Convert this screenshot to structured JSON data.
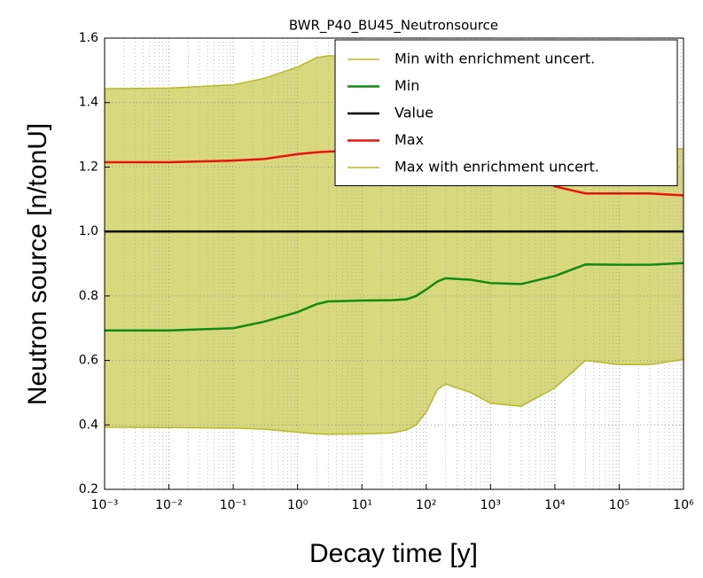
{
  "chart_data": {
    "type": "line",
    "title": "BWR_P40_BU45_Neutronsource",
    "xlabel": "Decay time [y]",
    "ylabel": "Neutron source [n/tonU]",
    "xscale": "log",
    "grid": true,
    "legend": "upper right",
    "x": [
      0.001,
      0.01,
      0.1,
      0.3,
      1,
      2,
      3,
      10,
      30,
      50,
      70,
      100,
      150,
      200,
      500,
      1000,
      3000,
      10000,
      30000,
      100000,
      300000,
      1000000
    ],
    "series": [
      {
        "name": "Min with enrichment uncert.",
        "color": "#b8b82a",
        "values": [
          0.393,
          0.392,
          0.39,
          0.387,
          0.377,
          0.372,
          0.371,
          0.372,
          0.375,
          0.385,
          0.4,
          0.44,
          0.51,
          0.527,
          0.5,
          0.467,
          0.458,
          0.515,
          0.6,
          0.587,
          0.587,
          0.603
        ]
      },
      {
        "name": "Min",
        "color": "#128a12",
        "values": [
          0.693,
          0.693,
          0.7,
          0.72,
          0.75,
          0.775,
          0.783,
          0.786,
          0.787,
          0.79,
          0.8,
          0.82,
          0.845,
          0.855,
          0.85,
          0.84,
          0.837,
          0.862,
          0.898,
          0.897,
          0.897,
          0.902
        ]
      },
      {
        "name": "Value",
        "color": "#000000",
        "values": [
          1,
          1,
          1,
          1,
          1,
          1,
          1,
          1,
          1,
          1,
          1,
          1,
          1,
          1,
          1,
          1,
          1,
          1,
          1,
          1,
          1,
          1
        ]
      },
      {
        "name": "Max",
        "color": "#e8140c",
        "values": [
          1.215,
          1.215,
          1.22,
          1.225,
          1.24,
          1.246,
          1.248,
          1.25,
          1.25,
          1.25,
          1.25,
          1.25,
          1.25,
          1.25,
          1.24,
          1.23,
          1.2,
          1.14,
          1.118,
          1.118,
          1.118,
          1.112
        ]
      },
      {
        "name": "Max with enrichment uncert.",
        "color": "#b8b82a",
        "values": [
          1.443,
          1.445,
          1.455,
          1.475,
          1.51,
          1.54,
          1.545,
          1.545,
          1.545,
          1.545,
          1.545,
          1.54,
          1.535,
          1.53,
          1.51,
          1.5,
          1.46,
          1.4,
          1.27,
          1.262,
          1.26,
          1.256
        ]
      }
    ],
    "fill": {
      "between": [
        0,
        4
      ],
      "color": "#d8d87c"
    },
    "xlim": [
      0.001,
      1000000
    ],
    "xticks": [
      {
        "value": 0.001,
        "label": "10⁻³"
      },
      {
        "value": 0.01,
        "label": "10⁻²"
      },
      {
        "value": 0.1,
        "label": "10⁻¹"
      },
      {
        "value": 1,
        "label": "10⁰"
      },
      {
        "value": 10,
        "label": "10¹"
      },
      {
        "value": 100,
        "label": "10²"
      },
      {
        "value": 1000,
        "label": "10³"
      },
      {
        "value": 10000,
        "label": "10⁴"
      },
      {
        "value": 100000,
        "label": "10⁵"
      },
      {
        "value": 1000000,
        "label": "10⁶"
      }
    ],
    "ylim": [
      0.2,
      1.6
    ],
    "yticks": [
      0.2,
      0.4,
      0.6,
      0.8,
      {
        "value": 1,
        "label": "1.0"
      },
      1.2,
      1.4,
      1.6
    ]
  }
}
